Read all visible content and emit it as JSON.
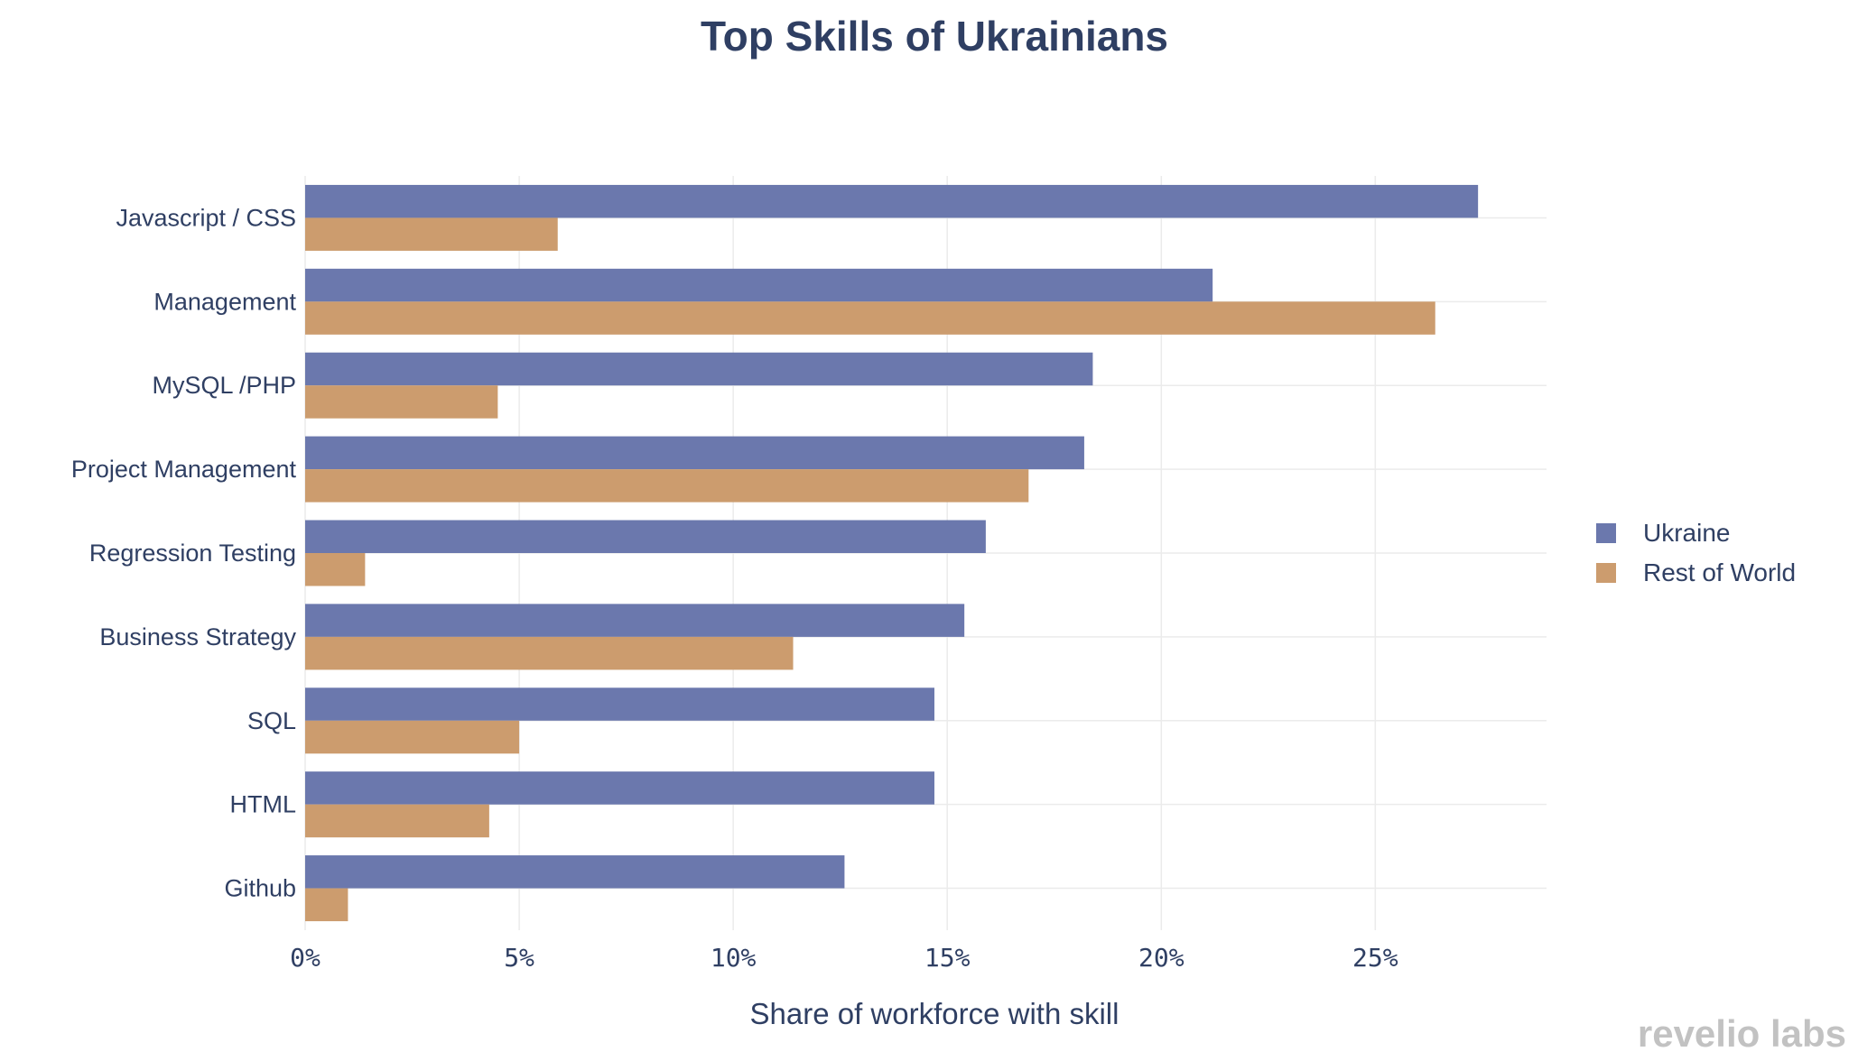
{
  "brand": "revelio labs",
  "colors": {
    "Ukraine": "#6b78ad",
    "Rest of World": "#cc9c6e"
  },
  "chart_data": {
    "type": "bar",
    "orientation": "horizontal",
    "title": "Top Skills of Ukrainians",
    "xlabel": "Share of workforce with skill",
    "ylabel": "",
    "xlim": [
      0,
      0.29
    ],
    "xticks": [
      0,
      0.05,
      0.1,
      0.15,
      0.2,
      0.25
    ],
    "xtick_labels": [
      "0%",
      "5%",
      "10%",
      "15%",
      "20%",
      "25%"
    ],
    "grid": true,
    "legend": "right",
    "categories": [
      "Javascript / CSS",
      "Management",
      "MySQL /PHP",
      "Project Management",
      "Regression Testing",
      "Business Strategy",
      "SQL",
      "HTML",
      "Github"
    ],
    "series": [
      {
        "name": "Ukraine",
        "values": [
          0.274,
          0.212,
          0.184,
          0.182,
          0.159,
          0.154,
          0.147,
          0.147,
          0.126
        ]
      },
      {
        "name": "Rest of World",
        "values": [
          0.059,
          0.264,
          0.045,
          0.169,
          0.014,
          0.114,
          0.05,
          0.043,
          0.01
        ]
      }
    ]
  }
}
